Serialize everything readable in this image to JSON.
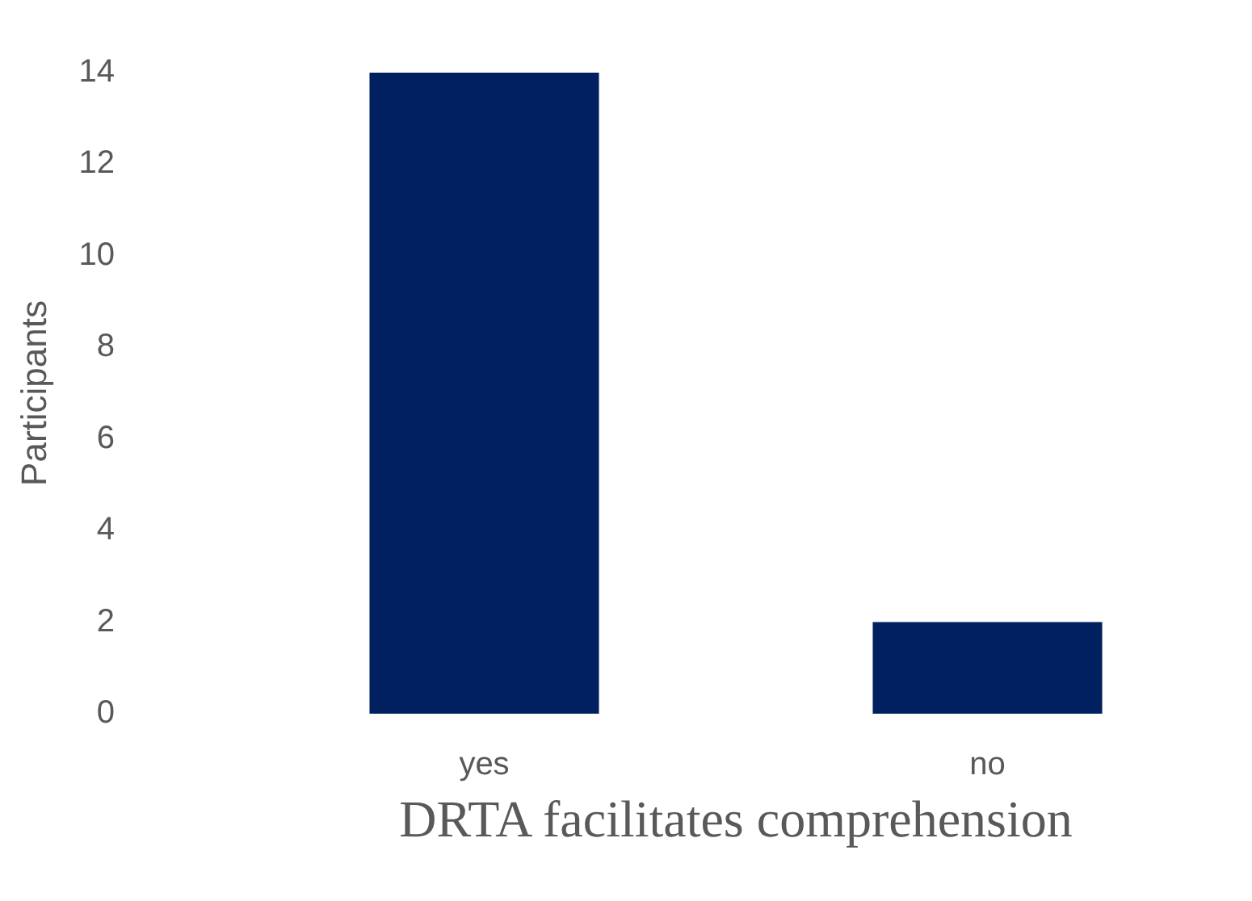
{
  "chart_data": {
    "type": "bar",
    "xlabel": "DRTA facilitates comprehension",
    "ylabel": "Participants",
    "categories": [
      "yes",
      "no"
    ],
    "values": [
      14,
      2
    ],
    "color": "#002060",
    "ylim": [
      0,
      14
    ],
    "yticks": [
      0,
      2,
      4,
      6,
      8,
      10,
      12,
      14
    ]
  }
}
